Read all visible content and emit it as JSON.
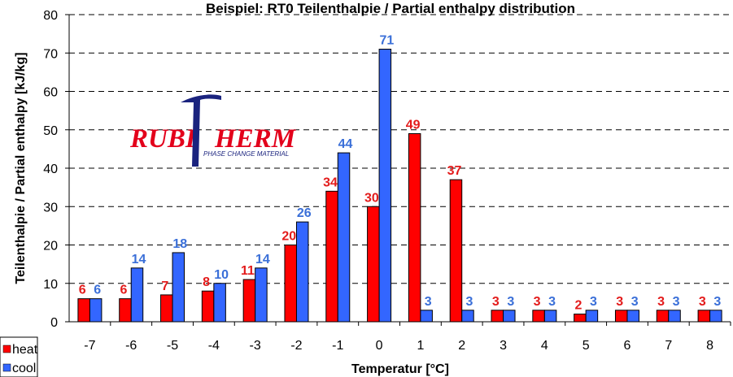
{
  "chart_data": {
    "type": "bar",
    "title": "Beispiel: RT0 Teilenthalpie / Partial enthalpy distribution",
    "xlabel": "Temperatur [°C]",
    "ylabel": "Teilenthalpie / Partial enthalpy [kJ/kg]",
    "ylim": [
      0,
      80
    ],
    "yticks": [
      0,
      10,
      20,
      30,
      40,
      50,
      60,
      70,
      80
    ],
    "categories": [
      "-7",
      "-6",
      "-5",
      "-4",
      "-3",
      "-2",
      "-1",
      "0",
      "1",
      "2",
      "3",
      "4",
      "5",
      "6",
      "7",
      "8"
    ],
    "series": [
      {
        "name": "heat",
        "color": "#ff0000",
        "label_color": "#e31b1b",
        "values": [
          6,
          6,
          7,
          8,
          11,
          20,
          34,
          30,
          49,
          37,
          3,
          3,
          2,
          3,
          3,
          3
        ]
      },
      {
        "name": "cool",
        "color": "#3366ff",
        "label_color": "#3a6fd8",
        "values": [
          6,
          14,
          18,
          10,
          14,
          26,
          44,
          71,
          3,
          3,
          3,
          3,
          3,
          3,
          3,
          3
        ]
      }
    ],
    "grid": "horizontal dashed",
    "legend_position": "bottom-left"
  },
  "logo": {
    "text": "RUBITHERM",
    "subtitle": "PHASE CHANGE MATERIAL"
  }
}
